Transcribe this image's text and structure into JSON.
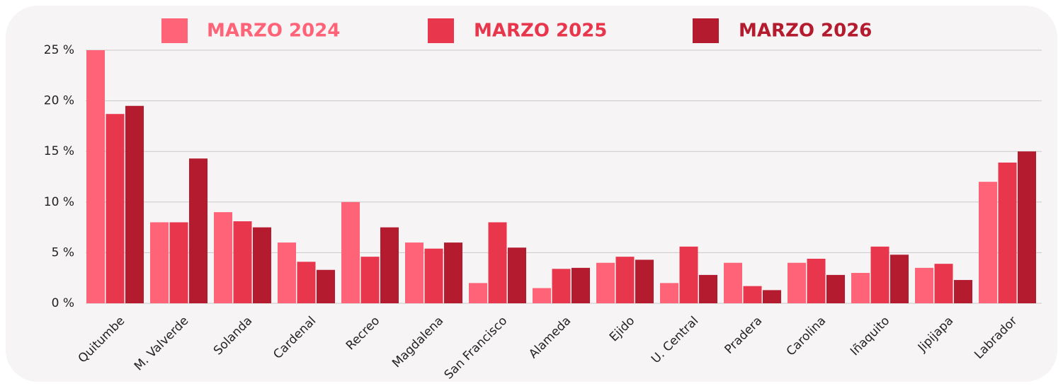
{
  "chart_data": {
    "type": "bar",
    "categories": [
      "Quitumbe",
      "M. Valverde",
      "Solanda",
      "Cardenal",
      "Recreo",
      "Magdalena",
      "San Francisco",
      "Alameda",
      "Ejido",
      "U. Central",
      "Pradera",
      "Carolina",
      "Iñaquito",
      "Jipijapa",
      "Labrador"
    ],
    "series": [
      {
        "name": "MARZO 2024",
        "color": "#ff6378",
        "values": [
          25,
          8,
          9,
          6,
          10,
          6,
          2,
          1.5,
          4,
          2,
          4,
          4,
          3,
          3.5,
          12
        ]
      },
      {
        "name": "MARZO 2025",
        "color": "#e8374d",
        "values": [
          18.7,
          8,
          8.1,
          4.1,
          4.6,
          5.4,
          8,
          3.4,
          4.6,
          5.6,
          1.7,
          4.4,
          5.6,
          3.9,
          13.9
        ]
      },
      {
        "name": "MARZO 2026",
        "color": "#b51b2e",
        "values": [
          19.5,
          14.3,
          7.5,
          3.3,
          7.5,
          6,
          5.5,
          3.5,
          4.3,
          2.8,
          1.3,
          2.8,
          4.8,
          2.3,
          15
        ]
      }
    ],
    "ylim": [
      0,
      25
    ],
    "yticks": [
      {
        "value": 0,
        "label": "0 %"
      },
      {
        "value": 5,
        "label": "5 %"
      },
      {
        "value": 10,
        "label": "10 %"
      },
      {
        "value": 15,
        "label": "15 %"
      },
      {
        "value": 20,
        "label": "20 %"
      },
      {
        "value": 25,
        "label": "25 %"
      }
    ],
    "grid": true
  }
}
